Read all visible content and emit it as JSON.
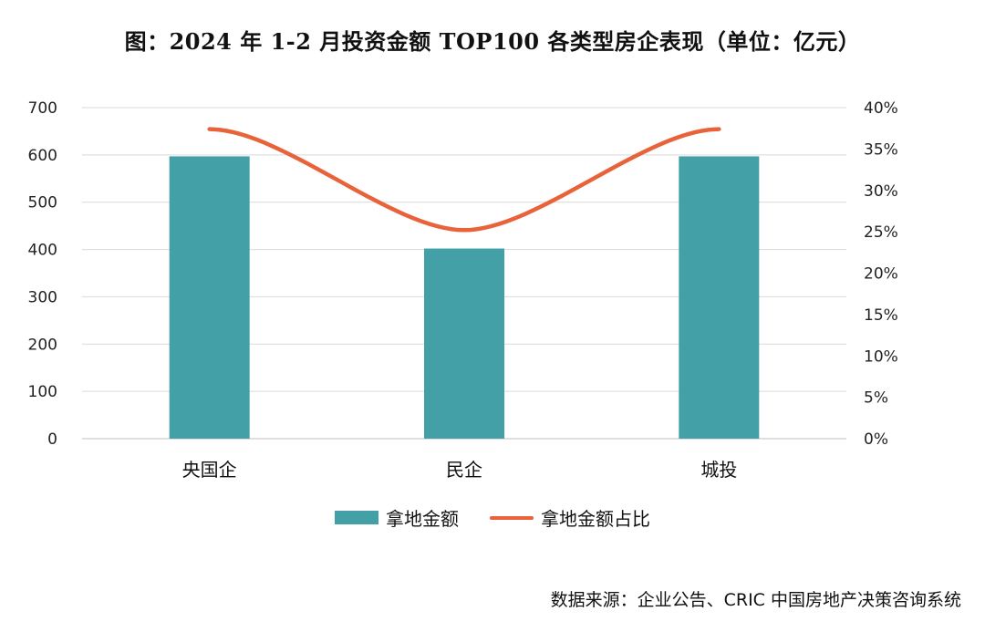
{
  "title": "图：2024 年 1-2 月投资金额 TOP100 各类型房企表现（单位：亿元）",
  "source": "数据来源：企业公告、CRIC 中国房地产决策咨询系统",
  "colors": {
    "bar": "#43a0a7",
    "line": "#e8633a",
    "grid": "#d9d9d9"
  },
  "chart_data": {
    "type": "bar",
    "title": "图：2024 年 1-2 月投资金额 TOP100 各类型房企表现（单位：亿元）",
    "categories": [
      "央国企",
      "民企",
      "城投"
    ],
    "series": [
      {
        "name": "拿地金额",
        "type": "bar",
        "axis": "left",
        "values": [
          597,
          402,
          597
        ]
      },
      {
        "name": "拿地金额占比",
        "type": "line",
        "axis": "right",
        "smooth": true,
        "values": [
          0.374,
          0.252,
          0.374
        ]
      }
    ],
    "y_left": {
      "ylim": [
        0,
        700
      ],
      "ticks": [
        "0",
        "100",
        "200",
        "300",
        "400",
        "500",
        "600",
        "700"
      ]
    },
    "y_right": {
      "ylim": [
        0,
        0.4
      ],
      "ticks": [
        "0%",
        "5%",
        "10%",
        "15%",
        "20%",
        "25%",
        "30%",
        "35%",
        "40%"
      ]
    },
    "grid": true,
    "legend": "bottom"
  }
}
